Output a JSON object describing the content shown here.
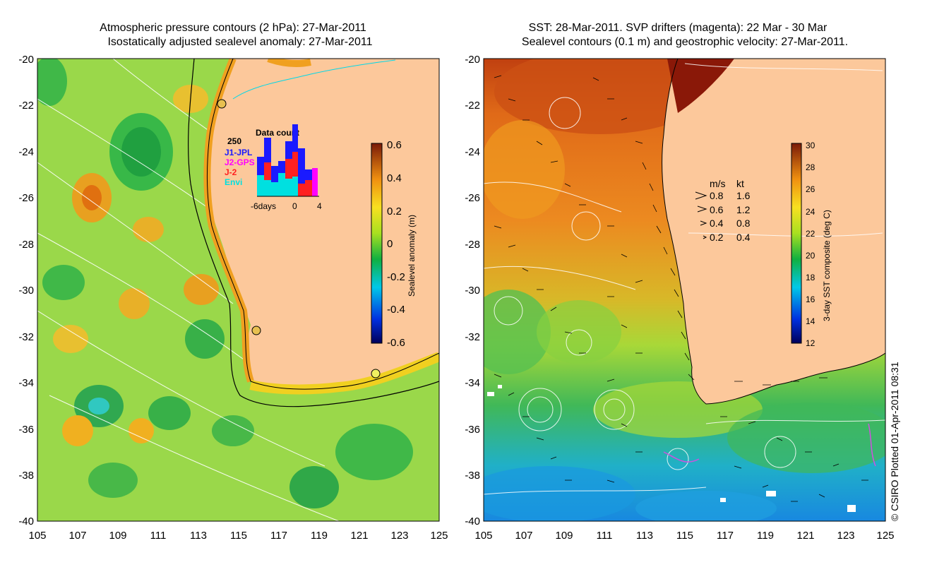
{
  "left_panel": {
    "title_line1": "Atmospheric pressure contours (2 hPa): 27-Mar-2011",
    "title_line2": "Isostatically adjusted sealevel anomaly: 27-Mar-2011",
    "y_ticks": [
      "-20",
      "-22",
      "-24",
      "-26",
      "-28",
      "-30",
      "-32",
      "-34",
      "-36",
      "-38",
      "-40"
    ],
    "x_ticks": [
      "105",
      "107",
      "109",
      "111",
      "113",
      "115",
      "117",
      "119",
      "121",
      "123",
      "125"
    ],
    "colorbar": {
      "label": "Sealevel anomaly (m)",
      "ticks": [
        "0.6",
        "0.4",
        "0.2",
        "0",
        "-0.2",
        "-0.4",
        "-0.6"
      ]
    },
    "inset": {
      "title": "Data count",
      "count_label": "250",
      "legend": [
        {
          "name": "J1-JPL",
          "color": "#1a1aff"
        },
        {
          "name": "J2-GPS",
          "color": "#ff00ff"
        },
        {
          "name": "J-2",
          "color": "#ff2020"
        },
        {
          "name": "Envi",
          "color": "#00e0e0"
        }
      ],
      "xlabel": "-6days",
      "x_ticks": [
        "0",
        "4"
      ]
    }
  },
  "right_panel": {
    "title_line1": "SST: 28-Mar-2011. SVP drifters (magenta): 22 Mar - 30 Mar",
    "title_line2": "Sealevel contours (0.1 m) and geostrophic velocity: 27-Mar-2011.",
    "y_ticks": [
      "-20",
      "-22",
      "-24",
      "-26",
      "-28",
      "-30",
      "-32",
      "-34",
      "-36",
      "-38",
      "-40"
    ],
    "x_ticks": [
      "105",
      "107",
      "109",
      "111",
      "113",
      "115",
      "117",
      "119",
      "121",
      "123",
      "125"
    ],
    "colorbar": {
      "label": "3-day SST composite (deg C)",
      "ticks": [
        "30",
        "28",
        "26",
        "24",
        "22",
        "20",
        "18",
        "16",
        "14",
        "12"
      ]
    },
    "velocity_key": {
      "header_ms": "m/s",
      "header_kt": "kt",
      "rows": [
        {
          "ms": "0.8",
          "kt": "1.6"
        },
        {
          "ms": "0.6",
          "kt": "1.2"
        },
        {
          "ms": "0.4",
          "kt": "0.8"
        },
        {
          "ms": "0.2",
          "kt": "0.4"
        }
      ]
    }
  },
  "credit": "© CSIRO Plotted 01-Apr-2011 08:31",
  "colors": {
    "land": "#fcc89b",
    "ocean_left": "#9ad84a",
    "ocean_right_warm": "#e8841c",
    "ocean_right_cool": "#7ccd3c"
  }
}
